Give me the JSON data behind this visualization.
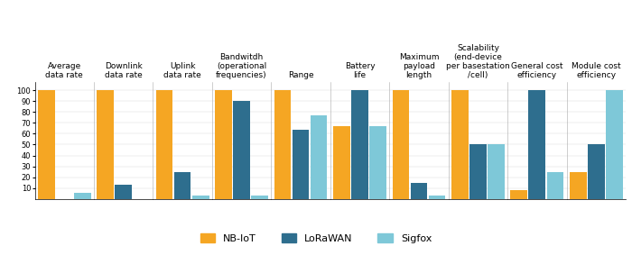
{
  "categories": [
    "Average\ndata rate",
    "Downlink\ndata rate",
    "Uplink\ndata rate",
    "Bandwitdh\n(operational\nfrequencies)",
    "Range",
    "Battery\nlife",
    "Maximum\npayload\nlength",
    "Scalability\n(end-device\nper basestation\n/cell)",
    "General cost\nefficiency",
    "Module cost\nefficiency"
  ],
  "nb_iot": [
    100,
    100,
    100,
    100,
    100,
    67,
    100,
    100,
    8,
    25
  ],
  "lorawan": [
    0,
    13,
    25,
    90,
    64,
    100,
    15,
    50,
    100,
    50
  ],
  "sigfox": [
    6,
    0,
    3,
    3,
    77,
    67,
    3,
    50,
    25,
    100
  ],
  "nb_color": "#F5A623",
  "lo_color": "#2E6E8E",
  "si_color": "#7EC8D8",
  "ylim": [
    0,
    108
  ],
  "yticks": [
    10,
    20,
    30,
    40,
    50,
    60,
    70,
    80,
    90,
    100
  ],
  "legend_labels": [
    "NB-IoT",
    "LoRaWAN",
    "Sigfox"
  ],
  "title_fontsize": 6.5,
  "tick_fontsize": 6,
  "legend_fontsize": 8
}
